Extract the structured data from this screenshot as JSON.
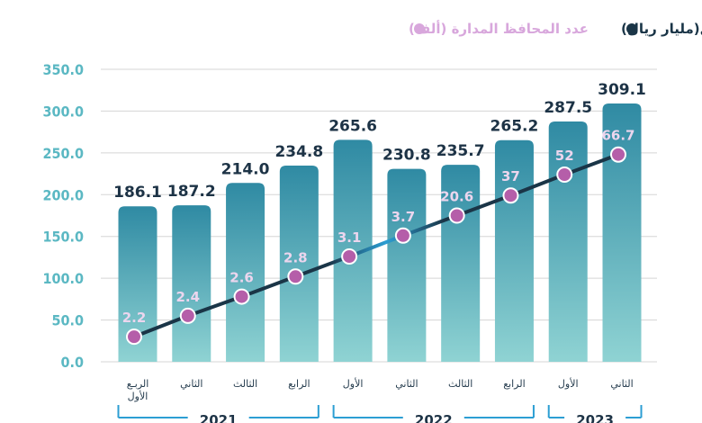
{
  "legend": {
    "assets_label": "قيم الأصول(مليار ريال)",
    "portfolios_label": "عدد المحافظ المدارة (ألف)"
  },
  "colors": {
    "bar_top": "#2f8aa3",
    "bar_bottom": "#8fd3d3",
    "line_dark": "#1a3547",
    "line_light": "#2c9ed3",
    "point_fill": "#b55ea9",
    "point_stroke": "#ffffff",
    "legend_dark": "#1a3547",
    "legend_light": "#d8a7dc",
    "axis_text": "#5bb8c3",
    "grid": "#d5d5d5"
  },
  "chart_data": {
    "type": "bar",
    "ylim": [
      0,
      350
    ],
    "yticks": [
      "0.0",
      "50.0",
      "100.0",
      "150.0",
      "200.0",
      "250.0",
      "300.0",
      "350.0"
    ],
    "grid": true,
    "legend_position": "top",
    "categories": [
      {
        "line1": "الربـع",
        "line2": "الأول"
      },
      {
        "line1": "الثاني",
        "line2": ""
      },
      {
        "line1": "الثالث",
        "line2": ""
      },
      {
        "line1": "الرابع",
        "line2": ""
      },
      {
        "line1": "الأول",
        "line2": ""
      },
      {
        "line1": "الثاني",
        "line2": ""
      },
      {
        "line1": "الثالث",
        "line2": ""
      },
      {
        "line1": "الرابع",
        "line2": ""
      },
      {
        "line1": "الأول",
        "line2": ""
      },
      {
        "line1": "الثاني",
        "line2": ""
      }
    ],
    "series": [
      {
        "name": "قيم الأصول(مليار ريال)",
        "kind": "bar",
        "values": [
          186.1,
          187.2,
          214.0,
          234.8,
          265.6,
          230.8,
          235.7,
          265.2,
          287.5,
          309.1
        ],
        "labels": [
          "186.1",
          "187.2",
          "214.0",
          "234.8",
          "265.6",
          "230.8",
          "235.7",
          "265.2",
          "287.5",
          "309.1"
        ]
      },
      {
        "name": "عدد المحافظ المدارة (ألف)",
        "kind": "line",
        "values": [
          2.2,
          2.4,
          2.6,
          2.8,
          3.1,
          3.7,
          20.6,
          37,
          52,
          66.7
        ],
        "labels": [
          "2.2",
          "2.4",
          "2.6",
          "2.8",
          "3.1",
          "3.7",
          "20.6",
          "37",
          "52",
          "66.7"
        ],
        "plot_y": [
          30,
          55,
          78,
          102,
          126,
          151,
          175,
          199,
          224,
          248
        ]
      }
    ],
    "year_groups": [
      {
        "label": "2021",
        "start": 0,
        "end": 3
      },
      {
        "label": "2022",
        "start": 4,
        "end": 7
      },
      {
        "label": "2023",
        "start": 8,
        "end": 9
      }
    ]
  }
}
